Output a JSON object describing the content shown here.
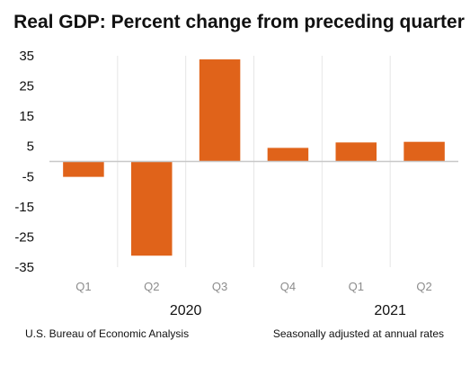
{
  "chart_data": {
    "type": "bar",
    "title": "Real GDP:  Percent change from preceding quarter",
    "categories": [
      "Q1",
      "Q2",
      "Q3",
      "Q4",
      "Q1",
      "Q2"
    ],
    "groups": [
      {
        "label": "2020",
        "categories": [
          "Q1",
          "Q2",
          "Q3",
          "Q4"
        ]
      },
      {
        "label": "2021",
        "categories": [
          "Q1",
          "Q2"
        ]
      }
    ],
    "values": [
      -5.1,
      -31.2,
      33.8,
      4.5,
      6.3,
      6.5
    ],
    "xlabel": "",
    "ylabel": "",
    "ylim": [
      -35,
      35
    ],
    "yticks": [
      35,
      25,
      15,
      5,
      -5,
      -15,
      -25,
      -35
    ],
    "grid": true,
    "legend": "none",
    "bar_color": "#e0631a",
    "gridline_color": "#e6e6e6"
  },
  "footer": {
    "source": "U.S. Bureau of Economic Analysis",
    "note": "Seasonally adjusted at annual rates"
  }
}
